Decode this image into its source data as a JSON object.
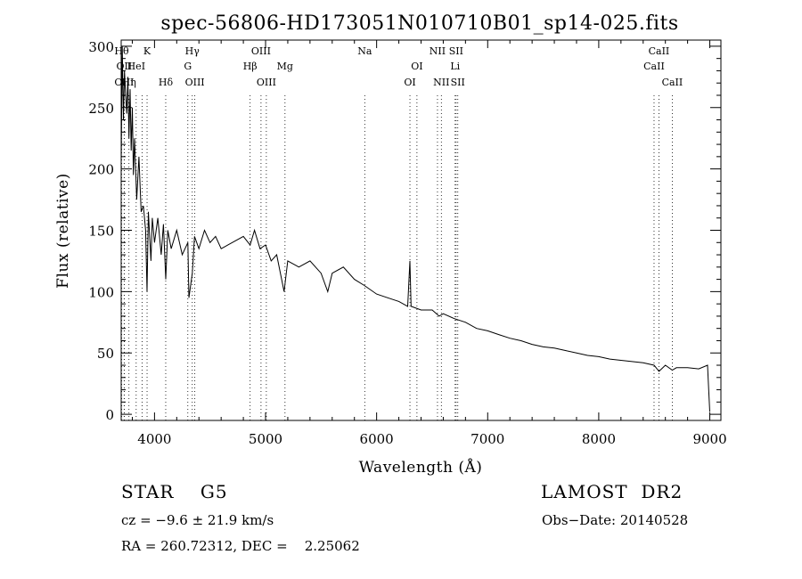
{
  "chart_data": {
    "type": "line",
    "title": "spec-56806-HD173051N010710B01_sp14-025.fits",
    "xlabel": "Wavelength (Å)",
    "ylabel": "Flux (relative)",
    "xlim": [
      3700,
      9100
    ],
    "ylim": [
      -5,
      305
    ],
    "x_ticks": [
      4000,
      5000,
      6000,
      7000,
      8000,
      9000
    ],
    "y_ticks": [
      0,
      50,
      100,
      150,
      200,
      250,
      300
    ],
    "x_tick_labels": [
      "4000",
      "5000",
      "6000",
      "7000",
      "8000",
      "9000"
    ],
    "y_tick_labels": [
      "0",
      "50",
      "100",
      "150",
      "200",
      "250",
      "300"
    ],
    "series": [
      {
        "x": [
          3700,
          3710,
          3720,
          3730,
          3740,
          3750,
          3760,
          3770,
          3780,
          3790,
          3800,
          3810,
          3820,
          3840,
          3860,
          3880,
          3900,
          3920,
          3933,
          3945,
          3968,
          3980,
          4000,
          4030,
          4060,
          4080,
          4101,
          4120,
          4150,
          4200,
          4250,
          4300,
          4310,
          4340,
          4360,
          4400,
          4450,
          4500,
          4550,
          4600,
          4700,
          4800,
          4861,
          4900,
          4950,
          5000,
          5050,
          5100,
          5167,
          5200,
          5300,
          5400,
          5500,
          5560,
          5600,
          5700,
          5800,
          5890,
          6000,
          6100,
          6200,
          6280,
          6300,
          6310,
          6400,
          6500,
          6563,
          6600,
          6700,
          6800,
          6900,
          7000,
          7100,
          7200,
          7300,
          7400,
          7500,
          7600,
          7700,
          7800,
          7900,
          8000,
          8100,
          8200,
          8300,
          8400,
          8498,
          8542,
          8600,
          8662,
          8700,
          8800,
          8900,
          8980,
          8990,
          9000
        ],
        "y": [
          205,
          300,
          240,
          280,
          260,
          245,
          275,
          225,
          265,
          215,
          250,
          195,
          225,
          175,
          210,
          165,
          170,
          150,
          100,
          165,
          125,
          160,
          140,
          160,
          130,
          155,
          110,
          150,
          135,
          150,
          130,
          140,
          95,
          115,
          145,
          135,
          150,
          140,
          145,
          135,
          140,
          145,
          138,
          150,
          135,
          138,
          125,
          130,
          100,
          125,
          120,
          125,
          115,
          100,
          115,
          120,
          110,
          105,
          98,
          95,
          92,
          88,
          125,
          88,
          85,
          85,
          80,
          82,
          78,
          75,
          70,
          68,
          65,
          62,
          60,
          57,
          55,
          54,
          52,
          50,
          48,
          47,
          45,
          44,
          43,
          42,
          40,
          35,
          40,
          36,
          38,
          38,
          37,
          40,
          20,
          2
        ]
      }
    ],
    "annotations": [
      {
        "x": 3704,
        "label": "Hθ",
        "row": 0
      },
      {
        "x": 3727,
        "label": "OII",
        "row": 1
      },
      {
        "x": 3727,
        "label": "OIII",
        "row": 2
      },
      {
        "x": 3770,
        "label": "Hη",
        "row": 2
      },
      {
        "x": 3835,
        "label": "HeI",
        "row": 1
      },
      {
        "x": 3889,
        "label": "",
        "row": 1
      },
      {
        "x": 3933,
        "label": "K",
        "row": 0
      },
      {
        "x": 4101,
        "label": "Hδ",
        "row": 2
      },
      {
        "x": 4300,
        "label": "G",
        "row": 1
      },
      {
        "x": 4340,
        "label": "Hγ",
        "row": 0
      },
      {
        "x": 4363,
        "label": "OIII",
        "row": 2
      },
      {
        "x": 4861,
        "label": "Hβ",
        "row": 1
      },
      {
        "x": 4959,
        "label": "OIII",
        "row": 0
      },
      {
        "x": 5007,
        "label": "OIII",
        "row": 2
      },
      {
        "x": 5175,
        "label": "Mg",
        "row": 1
      },
      {
        "x": 5893,
        "label": "Na",
        "row": 0
      },
      {
        "x": 6300,
        "label": "OI",
        "row": 2
      },
      {
        "x": 6363,
        "label": "OI",
        "row": 1
      },
      {
        "x": 6548,
        "label": "NII",
        "row": 0
      },
      {
        "x": 6583,
        "label": "NII",
        "row": 2
      },
      {
        "x": 6707,
        "label": "Li",
        "row": 1
      },
      {
        "x": 6716,
        "label": "SII",
        "row": 0
      },
      {
        "x": 6731,
        "label": "SII",
        "row": 2
      },
      {
        "x": 8498,
        "label": "CaII",
        "row": 1
      },
      {
        "x": 8542,
        "label": "CaII",
        "row": 0
      },
      {
        "x": 8662,
        "label": "CaII",
        "row": 2
      }
    ]
  },
  "info": {
    "class": "STAR    G5",
    "survey": "LAMOST  DR2",
    "cz": "cz = −9.6 ± 21.9 km/s",
    "obs_date": "Obs−Date: 20140528",
    "coords": "RA = 260.72312, DEC =    2.25062"
  }
}
